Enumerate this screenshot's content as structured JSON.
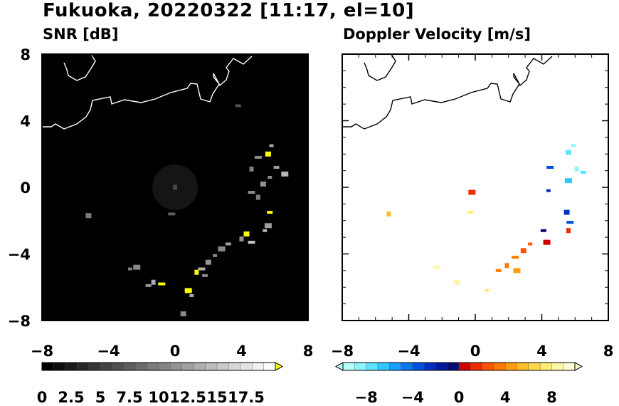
{
  "title": "Fukuoka, 20220322 [11:17, el=10]",
  "chart_data": [
    {
      "type": "heatmap",
      "title": "SNR [dB]",
      "background": "#000000",
      "xlim": [
        -8,
        8
      ],
      "ylim": [
        -8,
        8
      ],
      "x_ticks": [
        -8,
        -4,
        0,
        4,
        8
      ],
      "y_ticks": [
        8,
        4,
        0,
        -4,
        -8
      ],
      "x_tick_labels": [
        "−8",
        "−4",
        "0",
        "4",
        "8"
      ],
      "y_tick_labels": [
        "8",
        "4",
        "0",
        "−4",
        "−8"
      ],
      "colorbar": {
        "levels": 20,
        "extend": "max",
        "colors_from": "#000000",
        "colors_to": "#ffffff",
        "extend_color": "#ffff00",
        "tick_values": [
          0,
          2.5,
          5,
          7.5,
          10,
          12.5,
          15,
          17.5
        ],
        "tick_labels": [
          "0",
          "2.5",
          "5",
          "7.5",
          "10",
          "12.5",
          "15",
          "17.5"
        ],
        "range": [
          0,
          20
        ]
      },
      "echo_cells": [
        {
          "x": 5.8,
          "y": 2.5,
          "v": 12
        },
        {
          "x": 5.6,
          "y": 2.0,
          "v": 19
        },
        {
          "x": 5.0,
          "y": 1.8,
          "v": 9
        },
        {
          "x": 4.6,
          "y": 1.1,
          "v": 8
        },
        {
          "x": 6.1,
          "y": 1.2,
          "v": 11
        },
        {
          "x": 6.6,
          "y": 0.8,
          "v": 13
        },
        {
          "x": 5.7,
          "y": 0.6,
          "v": 9
        },
        {
          "x": 5.3,
          "y": 0.2,
          "v": 10
        },
        {
          "x": 4.6,
          "y": -0.3,
          "v": 9
        },
        {
          "x": 5.0,
          "y": -0.6,
          "v": 8
        },
        {
          "x": 5.7,
          "y": -1.5,
          "v": 19
        },
        {
          "x": 5.6,
          "y": -2.3,
          "v": 11
        },
        {
          "x": 5.4,
          "y": -2.6,
          "v": 13
        },
        {
          "x": 4.3,
          "y": -2.8,
          "v": 19
        },
        {
          "x": 4.6,
          "y": -3.3,
          "v": 15
        },
        {
          "x": 4.0,
          "y": -3.1,
          "v": 10
        },
        {
          "x": 3.2,
          "y": -3.4,
          "v": 11
        },
        {
          "x": 2.8,
          "y": -3.7,
          "v": 9
        },
        {
          "x": 2.4,
          "y": -4.1,
          "v": 9
        },
        {
          "x": 2.0,
          "y": -4.5,
          "v": 10
        },
        {
          "x": 1.6,
          "y": -4.9,
          "v": 13
        },
        {
          "x": 1.3,
          "y": -5.1,
          "v": 19
        },
        {
          "x": 1.8,
          "y": -5.3,
          "v": 9
        },
        {
          "x": 0.8,
          "y": -6.2,
          "v": 19
        },
        {
          "x": 1.0,
          "y": -6.5,
          "v": 12
        },
        {
          "x": 0.5,
          "y": -7.6,
          "v": 9
        },
        {
          "x": -0.8,
          "y": -5.8,
          "v": 19
        },
        {
          "x": -1.3,
          "y": -5.7,
          "v": 12
        },
        {
          "x": -1.6,
          "y": -5.9,
          "v": 10
        },
        {
          "x": -2.3,
          "y": -4.8,
          "v": 9
        },
        {
          "x": -2.7,
          "y": -4.9,
          "v": 8
        },
        {
          "x": -5.2,
          "y": -1.7,
          "v": 8
        },
        {
          "x": -0.2,
          "y": -1.6,
          "v": 5
        },
        {
          "x": 0.0,
          "y": 0.0,
          "v": 3
        },
        {
          "x": 3.8,
          "y": 4.9,
          "v": 4
        }
      ]
    },
    {
      "type": "heatmap",
      "title": "Doppler Velocity [m/s]",
      "background": "#ffffff",
      "xlim": [
        -8,
        8
      ],
      "ylim": [
        -8,
        8
      ],
      "x_ticks": [
        -8,
        -4,
        0,
        4,
        8
      ],
      "y_ticks": [
        8,
        4,
        0,
        -4,
        -8
      ],
      "x_tick_labels": [
        "−8",
        "−4",
        "0",
        "4",
        "8"
      ],
      "colorbar": {
        "levels": 20,
        "extend": "both",
        "colors": [
          "#b7fff8",
          "#8ff3ff",
          "#5fe3ff",
          "#2fc8ff",
          "#1aa0ff",
          "#0a78f0",
          "#0050e0",
          "#0030c0",
          "#001a9c",
          "#000c70",
          "#d00000",
          "#ee2a00",
          "#ff5500",
          "#ff7a00",
          "#ff9c10",
          "#ffbd2a",
          "#ffd84a",
          "#ffec75",
          "#fff6a8",
          "#fffcd8"
        ],
        "tick_values": [
          -8,
          -4,
          0,
          4,
          8
        ],
        "tick_labels": [
          "−8",
          "−4",
          "0",
          "4",
          "8"
        ],
        "range": [
          -10,
          10
        ]
      },
      "echo_cells": [
        {
          "x": 5.9,
          "y": 2.5,
          "v": -9
        },
        {
          "x": 5.6,
          "y": 2.1,
          "v": -8
        },
        {
          "x": 4.5,
          "y": 1.2,
          "v": -4
        },
        {
          "x": 6.1,
          "y": 1.1,
          "v": -9
        },
        {
          "x": 6.5,
          "y": 0.9,
          "v": -8
        },
        {
          "x": 5.6,
          "y": 0.4,
          "v": -7
        },
        {
          "x": 4.4,
          "y": -0.2,
          "v": -3
        },
        {
          "x": 5.5,
          "y": -1.5,
          "v": -3
        },
        {
          "x": 5.7,
          "y": -2.1,
          "v": -4
        },
        {
          "x": 5.6,
          "y": -2.6,
          "v": 1
        },
        {
          "x": 4.1,
          "y": -2.6,
          "v": -1
        },
        {
          "x": 4.3,
          "y": -3.3,
          "v": 0.5
        },
        {
          "x": 3.3,
          "y": -3.4,
          "v": 2
        },
        {
          "x": 2.9,
          "y": -3.8,
          "v": 2.5
        },
        {
          "x": 2.4,
          "y": -4.2,
          "v": 3
        },
        {
          "x": 1.9,
          "y": -4.7,
          "v": 3
        },
        {
          "x": 1.4,
          "y": -5.0,
          "v": 3.5
        },
        {
          "x": 2.5,
          "y": -5.0,
          "v": 4
        },
        {
          "x": 0.7,
          "y": -6.2,
          "v": 7
        },
        {
          "x": -1.1,
          "y": -5.7,
          "v": 8
        },
        {
          "x": -2.3,
          "y": -4.8,
          "v": 8.5
        },
        {
          "x": -5.2,
          "y": -1.6,
          "v": 5
        },
        {
          "x": -0.3,
          "y": -1.5,
          "v": 7
        },
        {
          "x": -0.2,
          "y": -0.3,
          "v": 1
        }
      ]
    }
  ]
}
